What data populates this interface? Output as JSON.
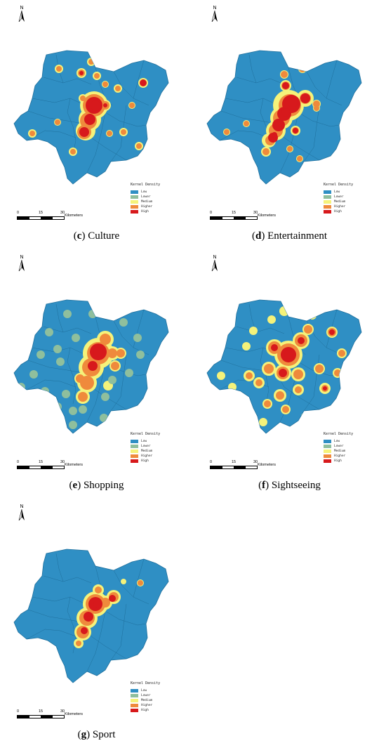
{
  "panels": [
    {
      "letter": "c",
      "name": "Culture",
      "key": "culture"
    },
    {
      "letter": "d",
      "name": "Entertainment",
      "key": "entertainment"
    },
    {
      "letter": "e",
      "name": "Shopping",
      "key": "shopping"
    },
    {
      "letter": "f",
      "name": "Sightseeing",
      "key": "sightseeing"
    },
    {
      "letter": "g",
      "name": "Sport",
      "key": "sport"
    }
  ],
  "north_label": "N",
  "legend": {
    "title": "Kernel Density",
    "classes": [
      {
        "label": "Low",
        "color": "#2f8fc4"
      },
      {
        "label": "Lower",
        "color": "#8fbf9d"
      },
      {
        "label": "Medium",
        "color": "#f5f27a"
      },
      {
        "label": "Higher",
        "color": "#ef8a3c"
      },
      {
        "label": "High",
        "color": "#d7191c"
      }
    ]
  },
  "scale_bar": {
    "ticks": [
      "0",
      "15",
      "30"
    ],
    "unit": "Kilometers"
  },
  "colors": {
    "base": "#2f8fc4",
    "boundary": "#1f6f9c"
  }
}
